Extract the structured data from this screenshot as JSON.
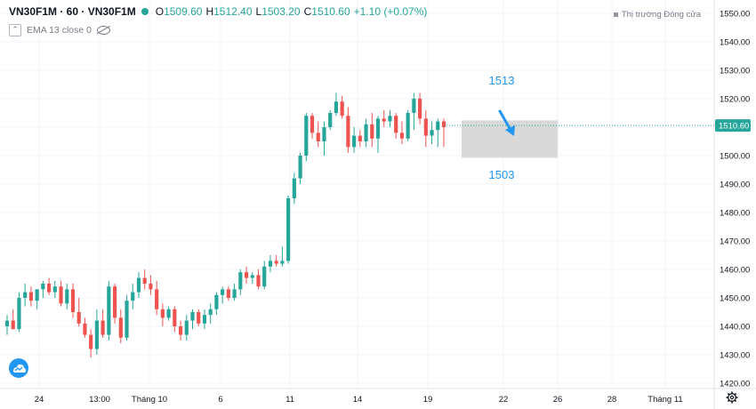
{
  "header": {
    "symbol": "VN30F1M · 60 · VN30F1M",
    "open_label": "O",
    "open": "1509.60",
    "high_label": "H",
    "high": "1512.40",
    "low_label": "L",
    "low": "1503.20",
    "close_label": "C",
    "close": "1510.60",
    "change": "+1.10 (+0.07%)"
  },
  "indicator": {
    "label": "EMA 13 close 0"
  },
  "market_status": "Thị trường Đóng cửa",
  "colors": {
    "up": "#26a69a",
    "down": "#ef5350",
    "accent": "#2196f3",
    "box": "#d9d9d9"
  },
  "icons": {
    "logo": "tradingview-logo-icon",
    "settings": "gear-icon",
    "visibility": "eye-off-icon",
    "collapse": "chevron-icon"
  },
  "chart_data": {
    "type": "candlestick",
    "title": "",
    "xlabel": "",
    "ylabel": "",
    "ylim": [
      1417,
      1554
    ],
    "y_ticks": [
      1420,
      1430,
      1440,
      1450,
      1460,
      1470,
      1480,
      1490,
      1500,
      1510,
      1520,
      1530,
      1540,
      1550
    ],
    "x_tick_labels": [
      "24",
      "13:00",
      "Tháng 10",
      "6",
      "11",
      "14",
      "19",
      "22",
      "26",
      "28",
      "Tháng 11"
    ],
    "last_price": {
      "value": 1510.6,
      "label": "1510.60"
    },
    "target_box": {
      "top": 1513,
      "bottom": 1503,
      "top_label": "1513",
      "bottom_label": "1503",
      "direction": "down"
    },
    "candles": [
      {
        "o": 1440,
        "h": 1444,
        "l": 1437,
        "c": 1442
      },
      {
        "o": 1442,
        "h": 1446,
        "l": 1439,
        "c": 1439
      },
      {
        "o": 1439,
        "h": 1452,
        "l": 1438,
        "c": 1450
      },
      {
        "o": 1450,
        "h": 1455,
        "l": 1447,
        "c": 1452
      },
      {
        "o": 1452,
        "h": 1454,
        "l": 1447,
        "c": 1449
      },
      {
        "o": 1449,
        "h": 1453,
        "l": 1446,
        "c": 1453
      },
      {
        "o": 1453,
        "h": 1456,
        "l": 1450,
        "c": 1455
      },
      {
        "o": 1455,
        "h": 1457,
        "l": 1451,
        "c": 1452
      },
      {
        "o": 1452,
        "h": 1456,
        "l": 1450,
        "c": 1454
      },
      {
        "o": 1454,
        "h": 1456,
        "l": 1447,
        "c": 1448
      },
      {
        "o": 1448,
        "h": 1455,
        "l": 1446,
        "c": 1453
      },
      {
        "o": 1453,
        "h": 1455,
        "l": 1443,
        "c": 1445
      },
      {
        "o": 1445,
        "h": 1450,
        "l": 1440,
        "c": 1441
      },
      {
        "o": 1441,
        "h": 1443,
        "l": 1436,
        "c": 1437
      },
      {
        "o": 1437,
        "h": 1439,
        "l": 1429,
        "c": 1432
      },
      {
        "o": 1432,
        "h": 1446,
        "l": 1430,
        "c": 1442
      },
      {
        "o": 1442,
        "h": 1446,
        "l": 1436,
        "c": 1437
      },
      {
        "o": 1437,
        "h": 1456,
        "l": 1435,
        "c": 1454
      },
      {
        "o": 1454,
        "h": 1455,
        "l": 1441,
        "c": 1443
      },
      {
        "o": 1443,
        "h": 1446,
        "l": 1434,
        "c": 1436
      },
      {
        "o": 1436,
        "h": 1451,
        "l": 1435,
        "c": 1449
      },
      {
        "o": 1449,
        "h": 1455,
        "l": 1446,
        "c": 1452
      },
      {
        "o": 1452,
        "h": 1459,
        "l": 1450,
        "c": 1457
      },
      {
        "o": 1457,
        "h": 1460,
        "l": 1453,
        "c": 1455
      },
      {
        "o": 1455,
        "h": 1458,
        "l": 1451,
        "c": 1453
      },
      {
        "o": 1453,
        "h": 1456,
        "l": 1444,
        "c": 1446
      },
      {
        "o": 1446,
        "h": 1448,
        "l": 1440,
        "c": 1443
      },
      {
        "o": 1443,
        "h": 1447,
        "l": 1442,
        "c": 1446
      },
      {
        "o": 1446,
        "h": 1447,
        "l": 1438,
        "c": 1440
      },
      {
        "o": 1440,
        "h": 1442,
        "l": 1435,
        "c": 1437
      },
      {
        "o": 1437,
        "h": 1444,
        "l": 1435,
        "c": 1442
      },
      {
        "o": 1442,
        "h": 1446,
        "l": 1439,
        "c": 1445
      },
      {
        "o": 1445,
        "h": 1446,
        "l": 1440,
        "c": 1441
      },
      {
        "o": 1441,
        "h": 1446,
        "l": 1439,
        "c": 1444
      },
      {
        "o": 1444,
        "h": 1448,
        "l": 1441,
        "c": 1446
      },
      {
        "o": 1446,
        "h": 1452,
        "l": 1444,
        "c": 1451
      },
      {
        "o": 1451,
        "h": 1454,
        "l": 1448,
        "c": 1453
      },
      {
        "o": 1453,
        "h": 1454,
        "l": 1449,
        "c": 1450
      },
      {
        "o": 1450,
        "h": 1455,
        "l": 1449,
        "c": 1453
      },
      {
        "o": 1453,
        "h": 1460,
        "l": 1451,
        "c": 1459
      },
      {
        "o": 1459,
        "h": 1461,
        "l": 1455,
        "c": 1457
      },
      {
        "o": 1457,
        "h": 1459,
        "l": 1455,
        "c": 1458
      },
      {
        "o": 1458,
        "h": 1460,
        "l": 1453,
        "c": 1454
      },
      {
        "o": 1454,
        "h": 1463,
        "l": 1453,
        "c": 1461
      },
      {
        "o": 1461,
        "h": 1465,
        "l": 1459,
        "c": 1463
      },
      {
        "o": 1463,
        "h": 1465,
        "l": 1461,
        "c": 1462
      },
      {
        "o": 1462,
        "h": 1468,
        "l": 1461,
        "c": 1463
      },
      {
        "o": 1463,
        "h": 1486,
        "l": 1462,
        "c": 1485
      },
      {
        "o": 1485,
        "h": 1494,
        "l": 1483,
        "c": 1492
      },
      {
        "o": 1492,
        "h": 1501,
        "l": 1490,
        "c": 1500
      },
      {
        "o": 1500,
        "h": 1515,
        "l": 1498,
        "c": 1514
      },
      {
        "o": 1514,
        "h": 1515,
        "l": 1506,
        "c": 1508
      },
      {
        "o": 1508,
        "h": 1512,
        "l": 1503,
        "c": 1505
      },
      {
        "o": 1505,
        "h": 1512,
        "l": 1500,
        "c": 1510
      },
      {
        "o": 1510,
        "h": 1516,
        "l": 1509,
        "c": 1515
      },
      {
        "o": 1515,
        "h": 1522,
        "l": 1514,
        "c": 1519
      },
      {
        "o": 1519,
        "h": 1521,
        "l": 1513,
        "c": 1514
      },
      {
        "o": 1514,
        "h": 1517,
        "l": 1501,
        "c": 1503
      },
      {
        "o": 1503,
        "h": 1510,
        "l": 1501,
        "c": 1507
      },
      {
        "o": 1507,
        "h": 1509,
        "l": 1503,
        "c": 1505
      },
      {
        "o": 1505,
        "h": 1513,
        "l": 1503,
        "c": 1511
      },
      {
        "o": 1511,
        "h": 1515,
        "l": 1503,
        "c": 1506
      },
      {
        "o": 1506,
        "h": 1514,
        "l": 1501,
        "c": 1513
      },
      {
        "o": 1513,
        "h": 1516,
        "l": 1510,
        "c": 1512
      },
      {
        "o": 1512,
        "h": 1516,
        "l": 1510,
        "c": 1514
      },
      {
        "o": 1514,
        "h": 1515,
        "l": 1506,
        "c": 1508
      },
      {
        "o": 1508,
        "h": 1512,
        "l": 1504,
        "c": 1506
      },
      {
        "o": 1506,
        "h": 1516,
        "l": 1505,
        "c": 1515
      },
      {
        "o": 1515,
        "h": 1522,
        "l": 1509,
        "c": 1520
      },
      {
        "o": 1520,
        "h": 1522,
        "l": 1511,
        "c": 1513
      },
      {
        "o": 1513,
        "h": 1516,
        "l": 1503,
        "c": 1507
      },
      {
        "o": 1507,
        "h": 1512,
        "l": 1504,
        "c": 1509
      },
      {
        "o": 1509,
        "h": 1513,
        "l": 1503,
        "c": 1512
      },
      {
        "o": 1512,
        "h": 1513,
        "l": 1503,
        "c": 1510
      }
    ]
  }
}
